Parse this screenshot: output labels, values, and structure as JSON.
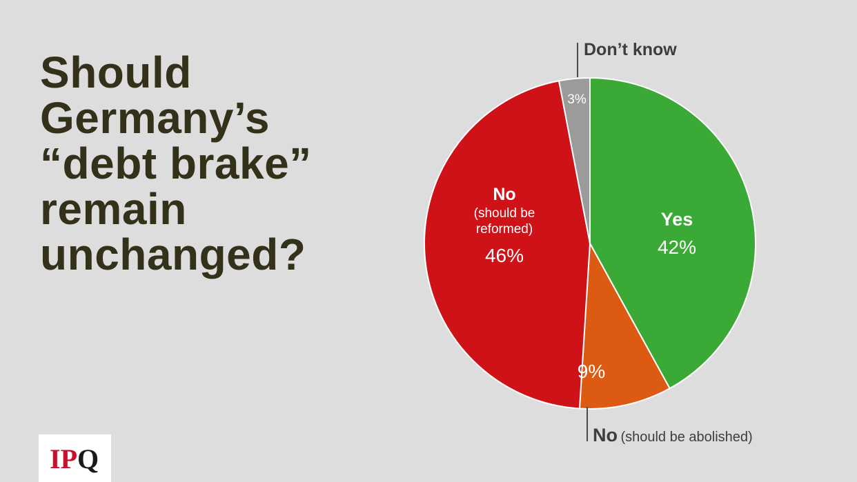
{
  "title_lines": [
    "Should",
    "Germany’s",
    "“debt brake”",
    "remain",
    "unchanged?"
  ],
  "logo": {
    "ip": "IP",
    "q": "Q"
  },
  "chart_data": {
    "type": "pie",
    "start_angle_deg": 0,
    "direction": "clockwise",
    "slices": [
      {
        "key": "yes",
        "label": "Yes",
        "sublabel": "",
        "value": 42,
        "value_label": "42%",
        "color": "#3aa935"
      },
      {
        "key": "abolish",
        "label": "No",
        "sublabel": "(should be abolished)",
        "value": 9,
        "value_label": "9%",
        "color": "#dc5a12"
      },
      {
        "key": "reform",
        "label": "No",
        "sublabel_lines": [
          "(should be",
          "reformed)"
        ],
        "value": 46,
        "value_label": "46%",
        "color": "#cf1218"
      },
      {
        "key": "dontknow",
        "label": "Don’t know",
        "sublabel": "",
        "value": 3,
        "value_label": "3%",
        "color": "#9b9c9a"
      }
    ],
    "title": ""
  }
}
